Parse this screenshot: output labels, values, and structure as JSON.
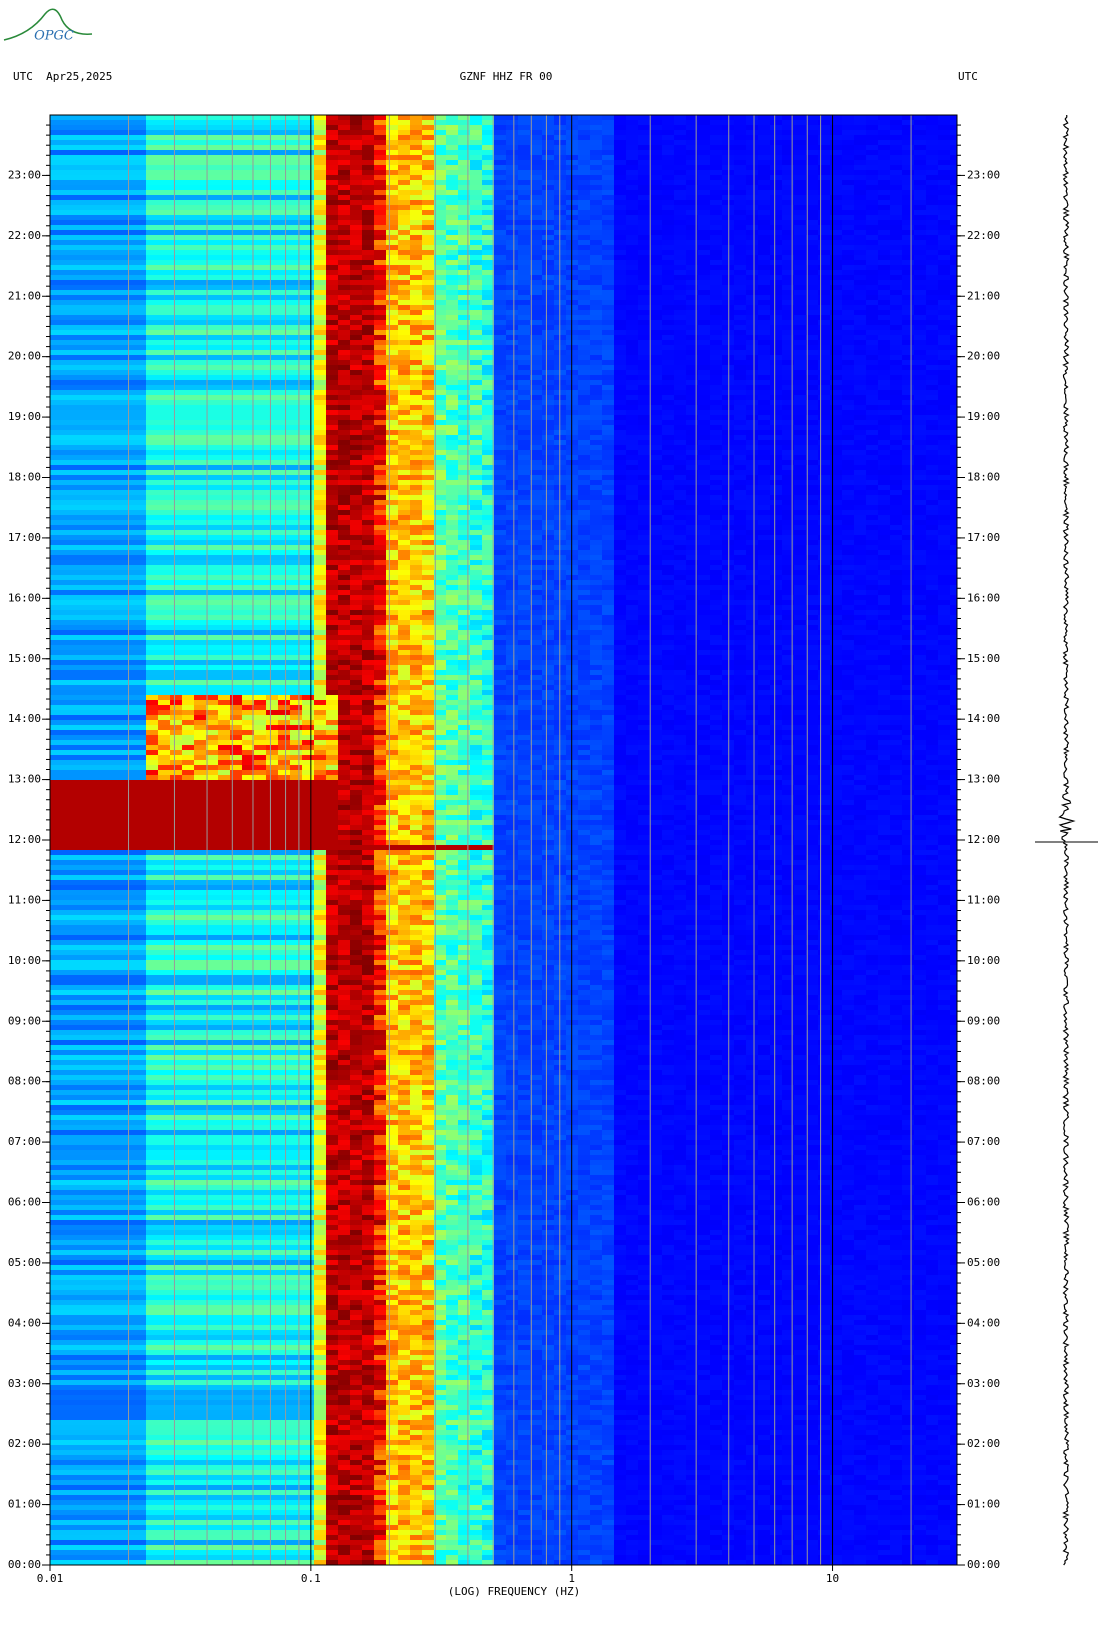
{
  "logo": "OPGC",
  "chart_data": {
    "type": "spectrogram",
    "title": "GZNF HHZ FR 00",
    "date_label": "UTC  Apr25,2025",
    "right_label": "UTC",
    "xlabel": "(LOG) FREQUENCY (HZ)",
    "xscale": "log",
    "xlim": [
      0.01,
      30
    ],
    "xticks": [
      0.01,
      0.1,
      1,
      10
    ],
    "xgrid": [
      0.02,
      0.03,
      0.04,
      0.05,
      0.06,
      0.07,
      0.08,
      0.09,
      0.2,
      0.3,
      0.4,
      0.5,
      0.6,
      0.7,
      0.8,
      0.9,
      2,
      3,
      4,
      5,
      6,
      7,
      8,
      9,
      20,
      30
    ],
    "ylim": [
      0,
      24
    ],
    "yticks": [
      {
        "value": 0,
        "label": "00:00"
      },
      {
        "value": 1,
        "label": "01:00"
      },
      {
        "value": 2,
        "label": "02:00"
      },
      {
        "value": 3,
        "label": "03:00"
      },
      {
        "value": 4,
        "label": "04:00"
      },
      {
        "value": 5,
        "label": "05:00"
      },
      {
        "value": 6,
        "label": "06:00"
      },
      {
        "value": 7,
        "label": "07:00"
      },
      {
        "value": 8,
        "label": "08:00"
      },
      {
        "value": 9,
        "label": "09:00"
      },
      {
        "value": 10,
        "label": "10:00"
      },
      {
        "value": 11,
        "label": "11:00"
      },
      {
        "value": 12,
        "label": "12:00"
      },
      {
        "value": 13,
        "label": "13:00"
      },
      {
        "value": 14,
        "label": "14:00"
      },
      {
        "value": 15,
        "label": "15:00"
      },
      {
        "value": 16,
        "label": "16:00"
      },
      {
        "value": 17,
        "label": "17:00"
      },
      {
        "value": 18,
        "label": "18:00"
      },
      {
        "value": 19,
        "label": "19:00"
      },
      {
        "value": 20,
        "label": "20:00"
      },
      {
        "value": 21,
        "label": "21:00"
      },
      {
        "value": 22,
        "label": "22:00"
      },
      {
        "value": 23,
        "label": "23:00"
      }
    ]
  }
}
